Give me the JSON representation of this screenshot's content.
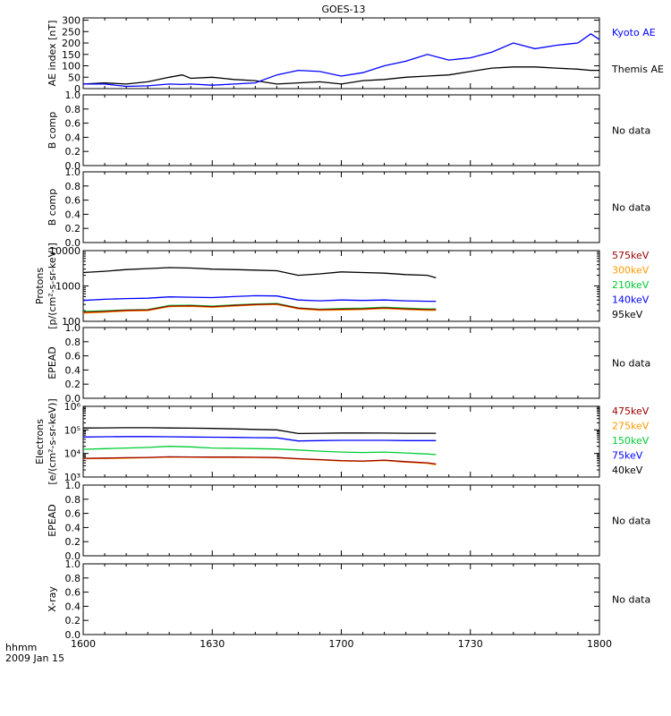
{
  "title": "GOES-13",
  "footer": {
    "line1": "hhmm",
    "line2": "2009 Jan 15"
  },
  "x_axis": {
    "min": 1600,
    "max": 1800,
    "ticks": [
      "1600",
      "1630",
      "1700",
      "1730",
      "1800"
    ]
  },
  "chart_data": [
    {
      "type": "line",
      "panel": "ae_index",
      "ylabel": "AE index [nT]",
      "yscale": "linear",
      "ylim": [
        0,
        310
      ],
      "ytick_labels": [
        "0",
        "50",
        "100",
        "150",
        "200",
        "250",
        "300"
      ],
      "x": [
        1600,
        1605,
        1610,
        1615,
        1620,
        1623,
        1625,
        1630,
        1635,
        1640,
        1645,
        1650,
        1655,
        1700,
        1705,
        1710,
        1715,
        1720,
        1725,
        1730,
        1735,
        1740,
        1745,
        1750,
        1755,
        1758,
        1800
      ],
      "series": [
        {
          "name": "Kyoto AE",
          "color": "#0000ff",
          "values": [
            20,
            20,
            10,
            12,
            20,
            18,
            20,
            15,
            20,
            25,
            60,
            80,
            75,
            55,
            70,
            100,
            120,
            150,
            125,
            135,
            160,
            200,
            175,
            190,
            200,
            240,
            215
          ]
        },
        {
          "name": "Themis AE",
          "color": "#000000",
          "values": [
            20,
            25,
            20,
            30,
            50,
            60,
            45,
            50,
            40,
            35,
            20,
            25,
            30,
            20,
            35,
            40,
            50,
            55,
            60,
            75,
            90,
            95,
            95,
            90,
            85,
            80,
            80
          ]
        }
      ]
    },
    {
      "type": "line",
      "panel": "b_comp_1",
      "ylabel": "B comp",
      "ylim": [
        0,
        1
      ],
      "ytick_labels": [
        "0.0",
        "0.2",
        "0.4",
        "0.6",
        "0.8",
        "1.0"
      ],
      "status": "No data",
      "series": []
    },
    {
      "type": "line",
      "panel": "b_comp_2",
      "ylabel": "B comp",
      "ylim": [
        0,
        1
      ],
      "ytick_labels": [
        "0.0",
        "0.2",
        "0.4",
        "0.6",
        "0.8",
        "1.0"
      ],
      "status": "No data",
      "series": []
    },
    {
      "type": "line",
      "panel": "protons",
      "ylabel": "Protons",
      "ylabel2": "[p/(cm²-s-sr-keV)]",
      "yscale": "log",
      "ylim": [
        100,
        10000
      ],
      "ytick_labels": [
        "100",
        "1000",
        "10000"
      ],
      "ytick_values": [
        100,
        1000,
        10000
      ],
      "x": [
        1600,
        1605,
        1610,
        1615,
        1620,
        1625,
        1630,
        1635,
        1640,
        1645,
        1650,
        1655,
        1700,
        1705,
        1710,
        1715,
        1720,
        1722
      ],
      "series": [
        {
          "name": "575keV",
          "color": "#990000",
          "values": [
            180,
            190,
            205,
            210,
            270,
            275,
            260,
            280,
            300,
            310,
            235,
            215,
            220,
            225,
            240,
            225,
            215,
            215
          ]
        },
        {
          "name": "300keV",
          "color": "#ff9900",
          "values": [
            170,
            180,
            195,
            200,
            260,
            265,
            250,
            270,
            290,
            300,
            225,
            205,
            210,
            215,
            230,
            215,
            205,
            205
          ]
        },
        {
          "name": "210keV",
          "color": "#00cc33",
          "values": [
            190,
            200,
            210,
            215,
            280,
            285,
            270,
            290,
            310,
            320,
            240,
            220,
            230,
            235,
            250,
            235,
            225,
            225
          ]
        },
        {
          "name": "140keV",
          "color": "#0000ff",
          "values": [
            390,
            420,
            440,
            450,
            490,
            480,
            470,
            500,
            530,
            520,
            400,
            380,
            400,
            390,
            400,
            380,
            370,
            370
          ]
        },
        {
          "name": "95keV",
          "color": "#000000",
          "values": [
            2400,
            2600,
            2900,
            3100,
            3300,
            3200,
            3000,
            2900,
            2800,
            2700,
            2000,
            2200,
            2500,
            2400,
            2300,
            2100,
            2000,
            1700
          ]
        }
      ]
    },
    {
      "type": "line",
      "panel": "epead_1",
      "ylabel": "EPEAD",
      "ylim": [
        0,
        1
      ],
      "ytick_labels": [
        "0.0",
        "0.2",
        "0.4",
        "0.6",
        "0.8",
        "1.0"
      ],
      "status": "No data",
      "series": []
    },
    {
      "type": "line",
      "panel": "electrons",
      "ylabel": "Electrons",
      "ylabel2": "[e/(cm²-s-sr-keV)]",
      "yscale": "log",
      "ylim": [
        1000,
        1000000
      ],
      "ytick_labels": [
        "10³",
        "10⁴",
        "10⁵",
        "10⁶"
      ],
      "ytick_values": [
        1000,
        10000,
        100000,
        1000000
      ],
      "x": [
        1600,
        1605,
        1610,
        1615,
        1620,
        1625,
        1630,
        1635,
        1640,
        1645,
        1650,
        1655,
        1700,
        1705,
        1710,
        1715,
        1720,
        1722
      ],
      "series": [
        {
          "name": "475keV",
          "color": "#990000",
          "values": [
            6200,
            6400,
            6600,
            6800,
            7200,
            7100,
            7000,
            7000,
            6900,
            6700,
            6000,
            5500,
            5000,
            4800,
            5200,
            4500,
            4000,
            3600
          ]
        },
        {
          "name": "275keV",
          "color": "#ff9900",
          "values": [
            6000,
            6100,
            6300,
            6600,
            7000,
            6900,
            6800,
            6800,
            6700,
            6500,
            5800,
            5300,
            4800,
            4600,
            5000,
            4300,
            3800,
            3300
          ]
        },
        {
          "name": "150keV",
          "color": "#00cc33",
          "values": [
            15000,
            16000,
            17000,
            18000,
            20000,
            19000,
            17000,
            16500,
            16000,
            15500,
            14000,
            12500,
            11500,
            11000,
            11500,
            10500,
            9500,
            9000
          ]
        },
        {
          "name": "75keV",
          "color": "#0000ff",
          "values": [
            50000,
            51000,
            52000,
            52000,
            51000,
            50000,
            49000,
            48000,
            47000,
            46000,
            34000,
            35000,
            36000,
            36000,
            36000,
            35000,
            35000,
            35000
          ]
        },
        {
          "name": "40keV",
          "color": "#000000",
          "values": [
            120000,
            122000,
            124000,
            124000,
            120000,
            118000,
            115000,
            110000,
            105000,
            100000,
            70000,
            72000,
            74000,
            74000,
            73000,
            72000,
            72000,
            72000
          ]
        }
      ]
    },
    {
      "type": "line",
      "panel": "epead_2",
      "ylabel": "EPEAD",
      "ylim": [
        0,
        1
      ],
      "ytick_labels": [
        "0.0",
        "0.2",
        "0.4",
        "0.6",
        "0.8",
        "1.0"
      ],
      "status": "No data",
      "series": []
    },
    {
      "type": "line",
      "panel": "xray",
      "ylabel": "X-ray",
      "ylim": [
        0,
        1
      ],
      "ytick_labels": [
        "0.0",
        "0.2",
        "0.4",
        "0.6",
        "0.8",
        "1.0"
      ],
      "status": "No data",
      "series": []
    }
  ]
}
